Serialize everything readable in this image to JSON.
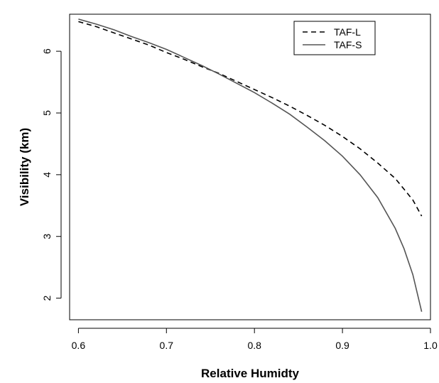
{
  "chart_data": {
    "type": "line",
    "xlabel": "Relative Humidty",
    "ylabel": "Visibility (km)",
    "xlim": [
      0.59,
      1.0
    ],
    "ylim": [
      1.65,
      6.6
    ],
    "x_ticks": [
      "0.6",
      "0.7",
      "0.8",
      "0.9",
      "1.0"
    ],
    "y_ticks": [
      "2",
      "3",
      "4",
      "5",
      "6"
    ],
    "legend_position": "top-right",
    "series": [
      {
        "name": "TAF-L",
        "line_style": "dashed",
        "color": "#000000",
        "x": [
          0.6,
          0.62,
          0.64,
          0.66,
          0.68,
          0.7,
          0.72,
          0.74,
          0.76,
          0.78,
          0.8,
          0.82,
          0.84,
          0.86,
          0.88,
          0.9,
          0.92,
          0.94,
          0.96,
          0.98,
          0.99
        ],
        "y": [
          6.48,
          6.4,
          6.3,
          6.2,
          6.1,
          5.98,
          5.87,
          5.75,
          5.64,
          5.51,
          5.38,
          5.25,
          5.11,
          4.96,
          4.8,
          4.62,
          4.42,
          4.19,
          3.94,
          3.59,
          3.33
        ]
      },
      {
        "name": "TAF-S",
        "line_style": "solid",
        "color": "#555555",
        "x": [
          0.6,
          0.62,
          0.64,
          0.66,
          0.68,
          0.7,
          0.72,
          0.74,
          0.76,
          0.78,
          0.8,
          0.82,
          0.84,
          0.86,
          0.88,
          0.9,
          0.92,
          0.94,
          0.96,
          0.97,
          0.98,
          0.99
        ],
        "y": [
          6.52,
          6.44,
          6.35,
          6.24,
          6.14,
          6.03,
          5.9,
          5.77,
          5.63,
          5.48,
          5.33,
          5.16,
          4.98,
          4.77,
          4.55,
          4.3,
          4.0,
          3.63,
          3.13,
          2.8,
          2.38,
          1.78
        ]
      }
    ]
  }
}
